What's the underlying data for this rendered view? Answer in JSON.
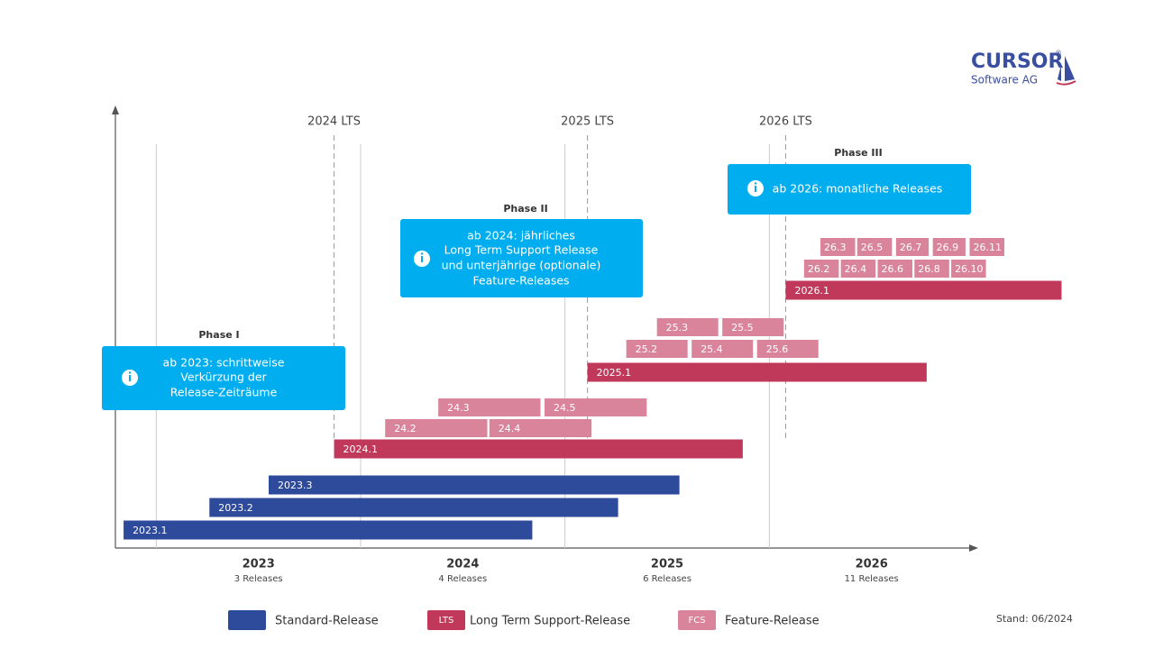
{
  "logo": {
    "name": "CURSOR",
    "reg": "®",
    "sub": "Software AG"
  },
  "xlim": [
    2022.8,
    2027
  ],
  "years": [
    {
      "year": 2023,
      "count": "3 Releases"
    },
    {
      "year": 2024,
      "count": "4 Releases"
    },
    {
      "year": 2025,
      "count": "6 Releases"
    },
    {
      "year": 2026,
      "count": "11 Releases"
    }
  ],
  "lts_markers": [
    {
      "label": "2024 LTS",
      "at": 2023.87
    },
    {
      "label": "2025 LTS",
      "at": 2025.11
    },
    {
      "label": "2026 LTS",
      "at": 2026.08
    }
  ],
  "rows": [
    {
      "kind": "fcs",
      "releases": [
        {
          "label": "26.3",
          "start": 2026.25,
          "end": 2026.42
        },
        {
          "label": "26.5",
          "start": 2026.43,
          "end": 2026.6
        },
        {
          "label": "26.7",
          "start": 2026.62,
          "end": 2026.78
        },
        {
          "label": "26.9",
          "start": 2026.8,
          "end": 2026.96
        },
        {
          "label": "26.11",
          "start": 2026.98,
          "end": 2027.15
        }
      ]
    },
    {
      "kind": "fcs",
      "releases": [
        {
          "label": "26.2",
          "start": 2026.17,
          "end": 2026.34
        },
        {
          "label": "26.4",
          "start": 2026.35,
          "end": 2026.52
        },
        {
          "label": "26.6",
          "start": 2026.53,
          "end": 2026.7
        },
        {
          "label": "26.8",
          "start": 2026.71,
          "end": 2026.88
        },
        {
          "label": "26.10",
          "start": 2026.89,
          "end": 2027.06
        }
      ]
    },
    {
      "kind": "lts",
      "releases": [
        {
          "label": "2026.1",
          "start": 2026.08,
          "end": 2027.43
        }
      ]
    },
    {
      "kind": "fcs",
      "releases": [
        {
          "label": "25.3",
          "start": 2025.45,
          "end": 2025.75
        },
        {
          "label": "25.5",
          "start": 2025.77,
          "end": 2026.07
        }
      ]
    },
    {
      "kind": "fcs",
      "releases": [
        {
          "label": "25.2",
          "start": 2025.3,
          "end": 2025.6
        },
        {
          "label": "25.4",
          "start": 2025.62,
          "end": 2025.92
        },
        {
          "label": "25.6",
          "start": 2025.94,
          "end": 2026.24
        }
      ]
    },
    {
      "kind": "lts",
      "releases": [
        {
          "label": "2025.1",
          "start": 2025.11,
          "end": 2026.77
        }
      ]
    },
    {
      "kind": "fcs",
      "releases": [
        {
          "label": "24.3",
          "start": 2024.38,
          "end": 2024.88
        },
        {
          "label": "24.5",
          "start": 2024.9,
          "end": 2025.4
        }
      ]
    },
    {
      "kind": "fcs",
      "releases": [
        {
          "label": "24.2",
          "start": 2024.12,
          "end": 2024.62
        },
        {
          "label": "24.4",
          "start": 2024.63,
          "end": 2025.13
        }
      ]
    },
    {
      "kind": "lts",
      "releases": [
        {
          "label": "2024.1",
          "start": 2023.87,
          "end": 2025.87
        }
      ]
    },
    {
      "kind": "standard",
      "releases": [
        {
          "label": "2023.3",
          "start": 2023.55,
          "end": 2025.56
        }
      ]
    },
    {
      "kind": "standard",
      "releases": [
        {
          "label": "2023.2",
          "start": 2023.26,
          "end": 2025.26
        }
      ]
    },
    {
      "kind": "standard",
      "releases": [
        {
          "label": "2023.1",
          "start": 2022.84,
          "end": 2024.84
        }
      ]
    }
  ],
  "phases": [
    {
      "title": "Phase I",
      "lines": [
        "ab 2023: schrittweise",
        "Verkürzung der",
        "Release-Zeiträume"
      ]
    },
    {
      "title": "Phase II",
      "lines": [
        "ab 2024: jährliches",
        "Long Term Support Release",
        "und unterjährige (optionale)",
        "Feature-Releases"
      ]
    },
    {
      "title": "Phase III",
      "lines": [
        "ab 2026: monatliche Releases"
      ]
    }
  ],
  "legend": [
    {
      "tag": null,
      "label": "Standard-Release"
    },
    {
      "tag": "LTS",
      "label": "Long Term Support-Release"
    },
    {
      "tag": "FCS",
      "label": "Feature-Release"
    }
  ],
  "note": "Stand: 06/2024"
}
